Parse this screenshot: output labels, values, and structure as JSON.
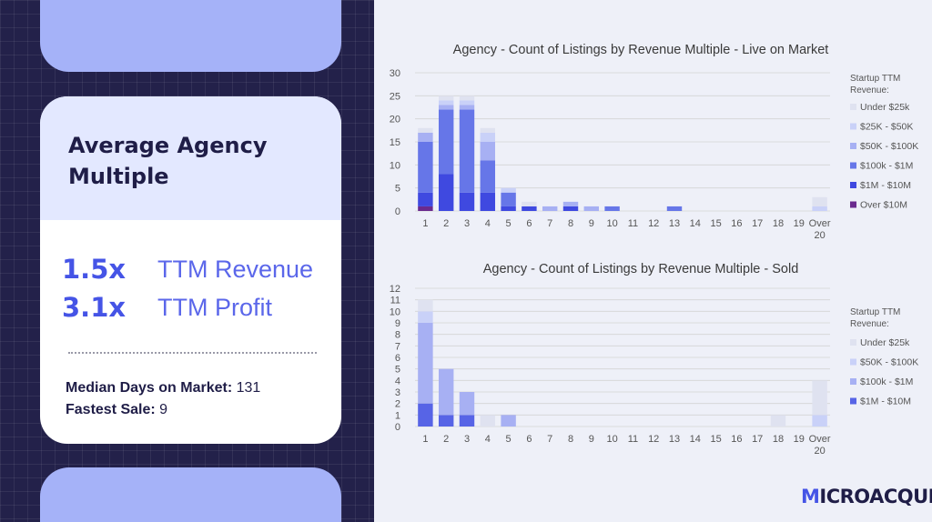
{
  "card": {
    "title": "Average Agency Multiple",
    "revenue_multiple": "1.5x",
    "revenue_label": "TTM Revenue",
    "profit_multiple": "3.1x",
    "profit_label": "TTM Profit",
    "median_days_label": "Median Days on Market:",
    "median_days_value": "131",
    "fastest_sale_label": "Fastest Sale:",
    "fastest_sale_value": "9"
  },
  "brand": {
    "first": "M",
    "rest": "ICROACQUIRE"
  },
  "chart_data": [
    {
      "type": "bar",
      "stacked": true,
      "title": "Agency  -  Count of Listings by Revenue Multiple - Live on Market",
      "categories": [
        "1",
        "2",
        "3",
        "4",
        "5",
        "6",
        "7",
        "8",
        "9",
        "10",
        "11",
        "12",
        "13",
        "14",
        "15",
        "16",
        "17",
        "18",
        "19",
        "Over 20"
      ],
      "ylim": [
        0,
        30
      ],
      "yticks": [
        0,
        5,
        10,
        15,
        20,
        25,
        30
      ],
      "grid": true,
      "legend_title": "Startup TTM Revenue:",
      "legend_position": "right",
      "series": [
        {
          "name": "Over $10M",
          "color": "#6a2a8e",
          "values": [
            1,
            0,
            0,
            0,
            0,
            0,
            0,
            0,
            0,
            0,
            0,
            0,
            0,
            0,
            0,
            0,
            0,
            0,
            0,
            0
          ]
        },
        {
          "name": "$1M - $10M",
          "color": "#3f49e0",
          "values": [
            3,
            8,
            4,
            4,
            1,
            1,
            0,
            1,
            0,
            0,
            0,
            0,
            0,
            0,
            0,
            0,
            0,
            0,
            0,
            0
          ]
        },
        {
          "name": "$100k - $1M",
          "color": "#6676e8",
          "values": [
            11,
            14,
            18,
            7,
            3,
            0,
            0,
            0,
            0,
            1,
            0,
            0,
            1,
            0,
            0,
            0,
            0,
            0,
            0,
            0
          ]
        },
        {
          "name": "$50K - $100K",
          "color": "#a7b0f3",
          "values": [
            2,
            1,
            1,
            4,
            0,
            0,
            1,
            1,
            1,
            0,
            0,
            0,
            0,
            0,
            0,
            0,
            0,
            0,
            0,
            0
          ]
        },
        {
          "name": "$25K - $50K",
          "color": "#c9d1f8",
          "values": [
            0,
            1,
            1,
            2,
            1,
            0,
            0,
            0,
            0,
            0,
            0,
            0,
            0,
            0,
            0,
            0,
            0,
            0,
            0,
            1
          ]
        },
        {
          "name": "Under $25k",
          "color": "#dfe2f0",
          "values": [
            1,
            1,
            1,
            1,
            0,
            1,
            0,
            0,
            0,
            0,
            0,
            0,
            0,
            0,
            0,
            0,
            0,
            0,
            0,
            2
          ]
        }
      ]
    },
    {
      "type": "bar",
      "stacked": true,
      "title": "Agency  -  Count of Listings by Revenue Multiple - Sold",
      "categories": [
        "1",
        "2",
        "3",
        "4",
        "5",
        "6",
        "7",
        "8",
        "9",
        "10",
        "11",
        "12",
        "13",
        "14",
        "15",
        "16",
        "17",
        "18",
        "19",
        "Over 20"
      ],
      "ylim": [
        0,
        12
      ],
      "yticks": [
        0,
        1,
        2,
        3,
        4,
        5,
        6,
        7,
        8,
        9,
        10,
        11,
        12
      ],
      "grid": true,
      "legend_title": "Startup TTM Revenue:",
      "legend_position": "right",
      "series": [
        {
          "name": "$1M - $10M",
          "color": "#5764e6",
          "values": [
            2,
            1,
            1,
            0,
            0,
            0,
            0,
            0,
            0,
            0,
            0,
            0,
            0,
            0,
            0,
            0,
            0,
            0,
            0,
            0
          ]
        },
        {
          "name": "$100k - $1M",
          "color": "#a7b0f3",
          "values": [
            7,
            4,
            2,
            0,
            1,
            0,
            0,
            0,
            0,
            0,
            0,
            0,
            0,
            0,
            0,
            0,
            0,
            0,
            0,
            0
          ]
        },
        {
          "name": "$50K - $100K",
          "color": "#c9d1f8",
          "values": [
            1,
            0,
            0,
            0,
            0,
            0,
            0,
            0,
            0,
            0,
            0,
            0,
            0,
            0,
            0,
            0,
            0,
            0,
            0,
            1
          ]
        },
        {
          "name": "Under $25k",
          "color": "#dfe2f0",
          "values": [
            1,
            0,
            0,
            1,
            0,
            0,
            0,
            0,
            0,
            0,
            0,
            0,
            0,
            0,
            0,
            0,
            0,
            1,
            0,
            3
          ]
        }
      ]
    }
  ]
}
